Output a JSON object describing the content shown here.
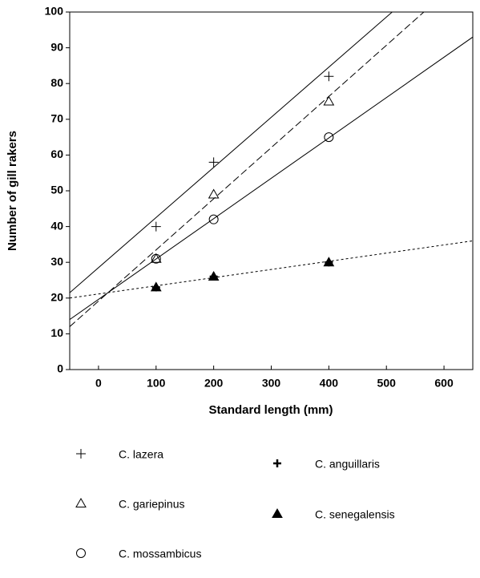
{
  "chart_data": {
    "type": "scatter",
    "xlabel": "Standard length (mm)",
    "ylabel": "Number of gill rakers",
    "xlim": [
      -50,
      650
    ],
    "xticks": [
      0,
      100,
      200,
      300,
      400,
      500,
      600
    ],
    "ylim": [
      0,
      100
    ],
    "yticks": [
      0,
      10,
      20,
      30,
      40,
      50,
      60,
      70,
      80,
      90,
      100
    ],
    "color": "#000000",
    "series": [
      {
        "name": "C. lazera",
        "marker": "plus",
        "x": [
          100,
          200,
          400
        ],
        "values": [
          40,
          58,
          82
        ],
        "fit": {
          "dash": "solid",
          "x": [
            -50,
            510
          ],
          "values": [
            21.5,
            100
          ]
        }
      },
      {
        "name": "C. gariepinus",
        "marker": "triangle",
        "x": [
          100,
          200,
          400
        ],
        "values": [
          31,
          49,
          75
        ],
        "fit": {
          "dash": "dashed",
          "x": [
            -50,
            565
          ],
          "values": [
            12,
            100
          ]
        }
      },
      {
        "name": "C. mossambicus",
        "marker": "circle",
        "x": [
          100,
          200,
          400
        ],
        "values": [
          31,
          42,
          65
        ],
        "fit": {
          "dash": "solid",
          "x": [
            -50,
            650
          ],
          "values": [
            14,
            93
          ]
        }
      },
      {
        "name": "C. anguillaris",
        "marker": "plus-bold",
        "x": [
          100,
          200,
          400
        ],
        "values": [
          23,
          26,
          30
        ]
      },
      {
        "name": "C. senegalensis",
        "marker": "triangle-filled",
        "x": [
          100,
          200,
          400
        ],
        "values": [
          23,
          26,
          30
        ],
        "fit": {
          "dash": "dotted",
          "x": [
            -50,
            650
          ],
          "values": [
            20,
            36
          ]
        }
      }
    ]
  }
}
